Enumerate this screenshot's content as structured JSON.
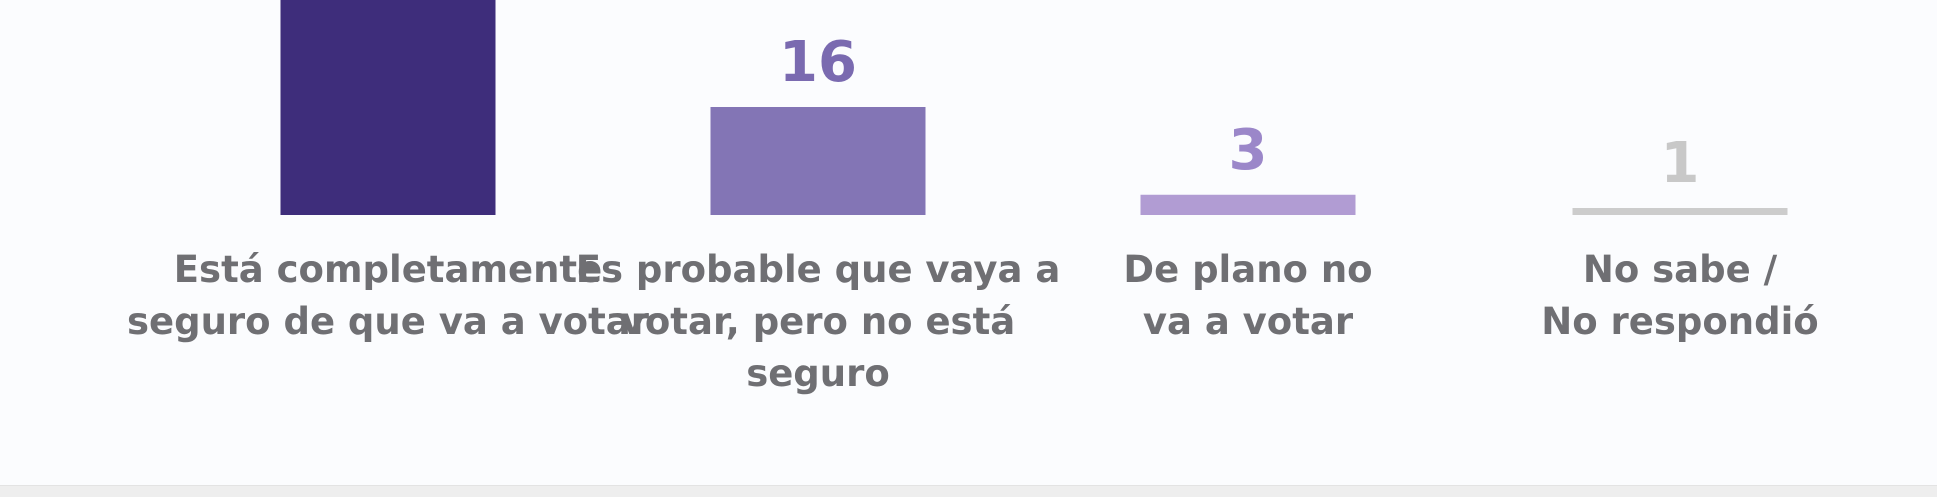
{
  "chart_data": {
    "type": "bar",
    "categories": [
      [
        "Está completamente",
        "seguro de que va a votar"
      ],
      [
        "Es probable que vaya a",
        "votar, pero no está",
        "seguro"
      ],
      [
        "De plano no",
        "va a votar"
      ],
      [
        "No sabe /",
        "No respondió"
      ]
    ],
    "values": [
      null,
      16,
      3,
      1
    ],
    "value_labels": [
      "",
      "16",
      "3",
      "1"
    ],
    "colors": [
      "#3e2d7b",
      "#8375b5",
      "#b19cd3",
      "#cccccc"
    ],
    "value_label_colors": [
      "#3e2d7b",
      "#7a6ab0",
      "#9b87c9",
      "#c8c8c8"
    ],
    "label_color": "#6f6f73",
    "title": "",
    "xlabel": "",
    "ylabel": "",
    "grid": false,
    "legend": "none"
  }
}
